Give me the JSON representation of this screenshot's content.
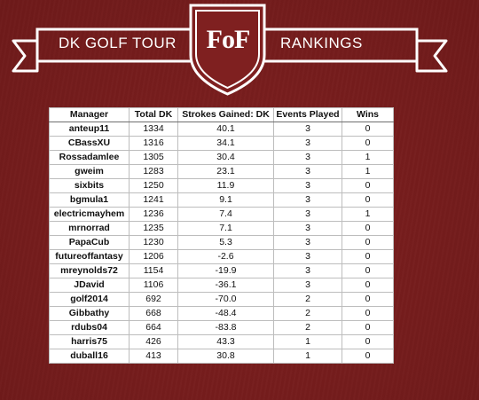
{
  "header": {
    "title_left": "DK GOLF TOUR",
    "logo": "FoF",
    "title_right": "RANKINGS"
  },
  "table": {
    "columns": [
      "Manager",
      "Total DK",
      "Strokes Gained: DK",
      "Events Played",
      "Wins"
    ],
    "rows": [
      [
        "anteup11",
        "1334",
        "40.1",
        "3",
        "0"
      ],
      [
        "CBassXU",
        "1316",
        "34.1",
        "3",
        "0"
      ],
      [
        "Rossadamlee",
        "1305",
        "30.4",
        "3",
        "1"
      ],
      [
        "gweim",
        "1283",
        "23.1",
        "3",
        "1"
      ],
      [
        "sixbits",
        "1250",
        "11.9",
        "3",
        "0"
      ],
      [
        "bgmula1",
        "1241",
        "9.1",
        "3",
        "0"
      ],
      [
        "electricmayhem",
        "1236",
        "7.4",
        "3",
        "1"
      ],
      [
        "mrnorrad",
        "1235",
        "7.1",
        "3",
        "0"
      ],
      [
        "PapaCub",
        "1230",
        "5.3",
        "3",
        "0"
      ],
      [
        "futureoffantasy",
        "1206",
        "-2.6",
        "3",
        "0"
      ],
      [
        "mreynolds72",
        "1154",
        "-19.9",
        "3",
        "0"
      ],
      [
        "JDavid",
        "1106",
        "-36.1",
        "3",
        "0"
      ],
      [
        "golf2014",
        "692",
        "-70.0",
        "2",
        "0"
      ],
      [
        "Gibbathy",
        "668",
        "-48.4",
        "2",
        "0"
      ],
      [
        "rdubs04",
        "664",
        "-83.8",
        "2",
        "0"
      ],
      [
        "harris75",
        "426",
        "43.3",
        "1",
        "0"
      ],
      [
        "duball16",
        "413",
        "30.8",
        "1",
        "0"
      ]
    ]
  },
  "colors": {
    "background": "#7f2020",
    "ribbon": "#ffffff",
    "table_bg": "#ffffff"
  }
}
